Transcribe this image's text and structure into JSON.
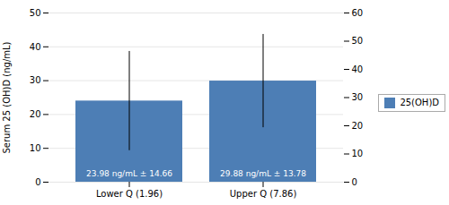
{
  "chart_data": {
    "type": "bar",
    "categories": [
      "Lower Q (1.96)",
      "Upper Q (7.86)"
    ],
    "series": [
      {
        "name": "25(OH)D",
        "color": "#4d7eb5",
        "values": [
          23.98,
          29.88
        ],
        "errors": [
          14.66,
          13.78
        ]
      }
    ],
    "annotations": [
      "23.98 ng/mL ± 14.66",
      "29.88 ng/mL ± 13.78"
    ],
    "ylabel": "Serum 25 (OH)D (ng/mL)",
    "ylim": [
      0,
      50
    ],
    "yticks": [
      0,
      10,
      20,
      30,
      40,
      50
    ],
    "y2lim": [
      0,
      60
    ],
    "y2ticks": [
      0,
      10,
      20,
      30,
      40,
      50,
      60
    ],
    "grid": true,
    "legend": "right"
  }
}
